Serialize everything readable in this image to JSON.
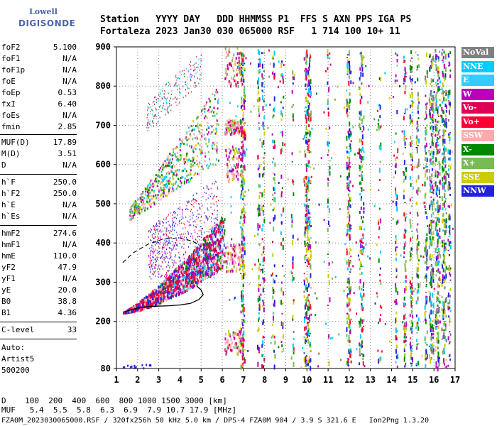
{
  "logo": {
    "line1": "Lowell",
    "line2": "DIGISONDE"
  },
  "header": {
    "line1": "Station   YYYY DAY   DDD HHMMSS P1  FFS S AXN PPS IGA PS",
    "line2": "Fortaleza 2023 Jan30 030 065000 RSF   1 714 100 10+ 11"
  },
  "params": [
    {
      "name": "foF2",
      "value": "5.100"
    },
    {
      "name": "foF1",
      "value": "N/A"
    },
    {
      "name": "foF1p",
      "value": "N/A"
    },
    {
      "name": "foE",
      "value": "N/A"
    },
    {
      "name": "foEp",
      "value": "0.53"
    },
    {
      "name": "fxI",
      "value": "6.40"
    },
    {
      "name": "foEs",
      "value": "N/A"
    },
    {
      "name": "fmin",
      "value": "2.85"
    },
    {
      "name": "MUF(D)",
      "value": "17.89"
    },
    {
      "name": "M(D)",
      "value": "3.51"
    },
    {
      "name": "D",
      "value": "N/A"
    },
    {
      "name": "h`F",
      "value": "250.0"
    },
    {
      "name": "h`F2",
      "value": "250.0"
    },
    {
      "name": "h`E",
      "value": "N/A"
    },
    {
      "name": "h`Es",
      "value": "N/A"
    },
    {
      "name": "hmF2",
      "value": "274.6"
    },
    {
      "name": "hmF1",
      "value": "N/A"
    },
    {
      "name": "hmE",
      "value": "110.0"
    },
    {
      "name": "yF2",
      "value": "47.9"
    },
    {
      "name": "yF1",
      "value": "N/A"
    },
    {
      "name": "yE",
      "value": "20.0"
    },
    {
      "name": "B0",
      "value": "38.8"
    },
    {
      "name": "B1",
      "value": "4.36"
    },
    {
      "name": "C-level",
      "value": "33"
    }
  ],
  "auto": {
    "line1": "Auto:",
    "line2": "Artist5",
    "line3": "500200"
  },
  "legend": [
    {
      "label": "NoVal",
      "color": "#808080"
    },
    {
      "label": "NNE",
      "color": "#00ccff"
    },
    {
      "label": "E",
      "color": "#33ccff"
    },
    {
      "label": "W",
      "color": "#bb00bb"
    },
    {
      "label": "Vo-",
      "color": "#dd0055"
    },
    {
      "label": "Vo+",
      "color": "#ff0033"
    },
    {
      "label": "SSW",
      "color": "#ffaaaa"
    },
    {
      "label": "X-",
      "color": "#008800"
    },
    {
      "label": "X+",
      "color": "#77bb55"
    },
    {
      "label": "SSE",
      "color": "#cccc00"
    },
    {
      "label": "NNW",
      "color": "#2222dd"
    }
  ],
  "bottom": {
    "d_line": "D    100  200  400  600  800 1000 1500 3000 [km]",
    "muf_line": "MUF   5.4  5.5  5.8  6.3  6.9  7.9 10.7 17.9 [MHz]",
    "file_line": "FZA0M_2023030065000.RSF / 320fx256h 50 kHz 5.0 km / DPS-4 FZA0M 904 / 3.9 S 321.6 E   Ion2Png 1.3.20"
  },
  "chart_data": {
    "type": "scatter",
    "x_ticks": [
      "1",
      "2",
      "3",
      "4",
      "5",
      "6",
      "7",
      "8",
      "9",
      "10",
      "11",
      "12",
      "13",
      "14",
      "15",
      "16",
      "17"
    ],
    "y_ticks": [
      "80",
      "200",
      "300",
      "400",
      "500",
      "600",
      "700",
      "800",
      "900"
    ],
    "xlim": [
      1,
      17
    ],
    "ylim": [
      80,
      900
    ],
    "profile": {
      "x": [
        1.4,
        2.0,
        2.5,
        3.0,
        3.5,
        4.0,
        4.5,
        4.9,
        5.1,
        5.0,
        4.8
      ],
      "y": [
        225,
        234,
        238,
        239,
        240,
        242,
        246,
        256,
        268,
        280,
        290
      ]
    },
    "extrapolation": {
      "x": [
        1.3,
        1.8,
        2.5,
        3.2,
        3.9,
        4.6,
        5.0
      ],
      "y": [
        350,
        375,
        397,
        410,
        413,
        405,
        390
      ]
    }
  }
}
